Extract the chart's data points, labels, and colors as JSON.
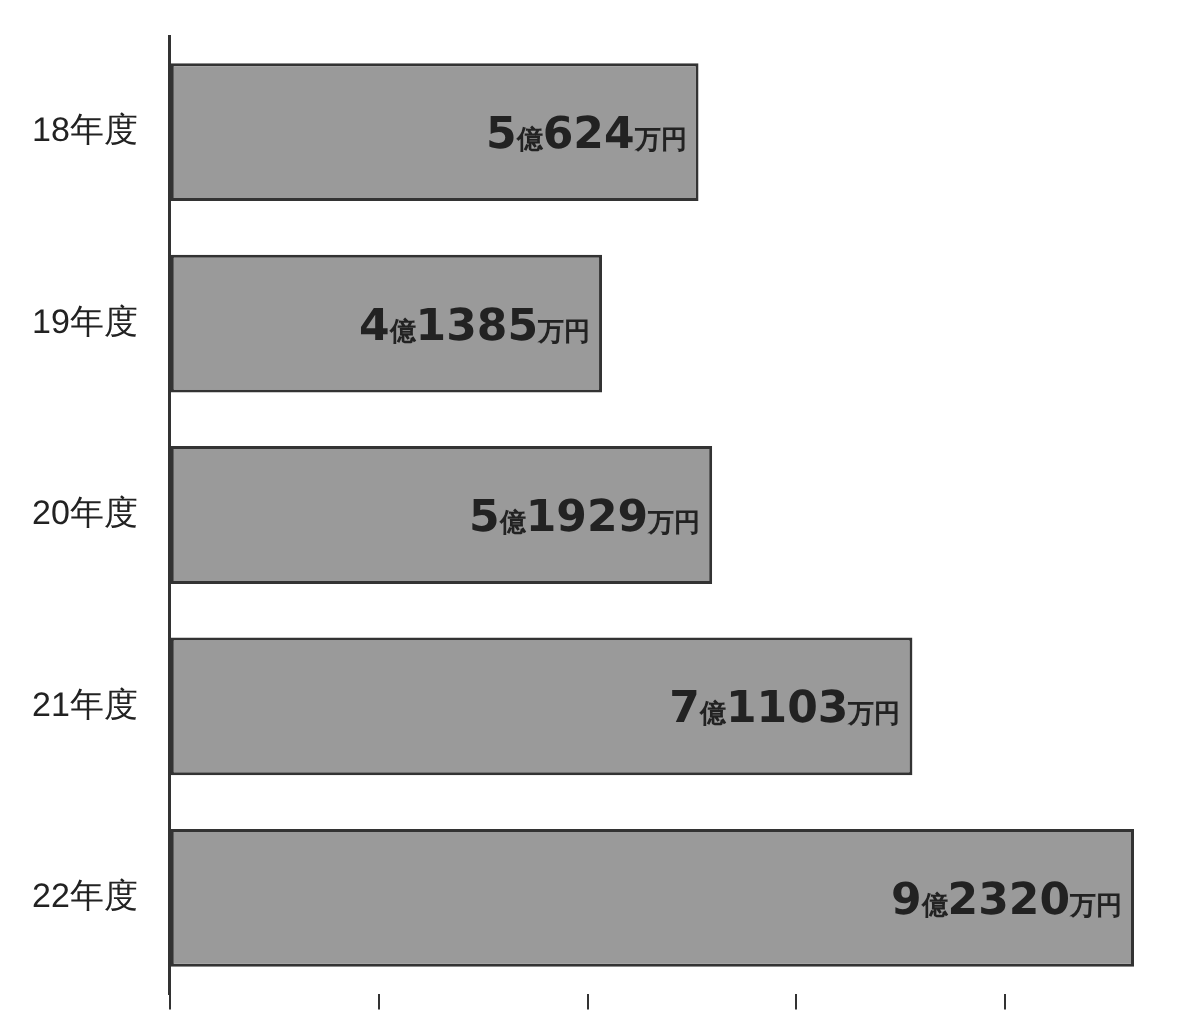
{
  "chart_data": {
    "type": "bar",
    "orientation": "horizontal",
    "categories": [
      "18年度",
      "19年度",
      "20年度",
      "21年度",
      "22年度"
    ],
    "values": [
      5.0624,
      4.1385,
      5.1929,
      7.1103,
      9.232
    ],
    "value_labels": [
      "5億624万円",
      "4億1385万円",
      "5億1929万円",
      "7億1103万円",
      "9億2320万円"
    ],
    "color": "#9a9a9a",
    "tick_labels": "y"
  }
}
